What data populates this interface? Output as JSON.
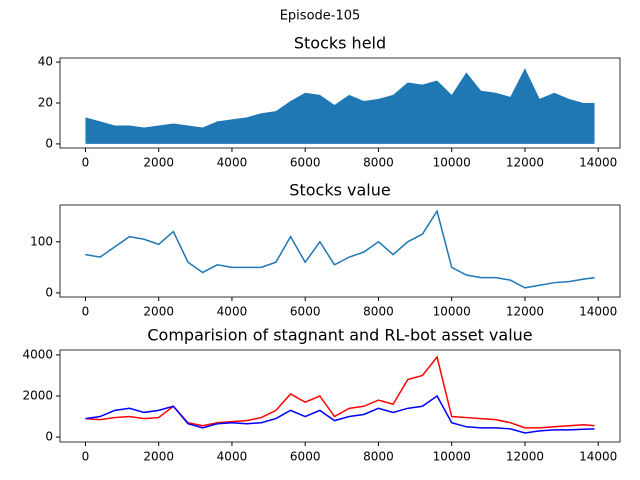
{
  "title": "Episode-105",
  "chart_data": [
    {
      "type": "area",
      "title": "Stocks held",
      "x": [
        0,
        400,
        800,
        1200,
        1600,
        2000,
        2400,
        2800,
        3200,
        3600,
        4000,
        4400,
        4800,
        5200,
        5600,
        6000,
        6400,
        6800,
        7200,
        7600,
        8000,
        8400,
        8800,
        9200,
        9600,
        10000,
        10400,
        10800,
        11200,
        11600,
        12000,
        12400,
        12800,
        13200,
        13600,
        13900
      ],
      "values": [
        13,
        11,
        9,
        9,
        8,
        9,
        10,
        9,
        8,
        11,
        12,
        13,
        15,
        16,
        21,
        25,
        24,
        19,
        24,
        21,
        22,
        24,
        30,
        29,
        31,
        24,
        35,
        26,
        25,
        23,
        37,
        22,
        25,
        22,
        20,
        20
      ],
      "color": "#1f77b4",
      "xlim": [
        -695,
        14595
      ],
      "xticks": [
        0,
        2000,
        4000,
        6000,
        8000,
        10000,
        12000,
        14000
      ],
      "ylim": [
        -2,
        42
      ],
      "yticks": [
        0,
        20,
        40
      ]
    },
    {
      "type": "line",
      "title": "Stocks value",
      "x": [
        0,
        400,
        800,
        1200,
        1600,
        2000,
        2400,
        2800,
        3200,
        3600,
        4000,
        4400,
        4800,
        5200,
        5600,
        6000,
        6400,
        6800,
        7200,
        7600,
        8000,
        8400,
        8800,
        9200,
        9600,
        10000,
        10400,
        10800,
        11200,
        11600,
        12000,
        12400,
        12800,
        13200,
        13600,
        13900
      ],
      "series": [
        {
          "color": "#1f77b4",
          "values": [
            75,
            70,
            90,
            110,
            105,
            95,
            120,
            60,
            40,
            55,
            50,
            50,
            50,
            60,
            110,
            60,
            100,
            55,
            70,
            80,
            100,
            75,
            100,
            115,
            160,
            50,
            35,
            30,
            30,
            25,
            10,
            15,
            20,
            22,
            27,
            30
          ]
        }
      ],
      "xlim": [
        -695,
        14595
      ],
      "xticks": [
        0,
        2000,
        4000,
        6000,
        8000,
        10000,
        12000,
        14000
      ],
      "ylim": [
        -8,
        172
      ],
      "yticks": [
        0,
        100
      ]
    },
    {
      "type": "line",
      "title": "Comparision of stagnant and RL-bot asset value",
      "x": [
        0,
        400,
        800,
        1200,
        1600,
        2000,
        2400,
        2800,
        3200,
        3600,
        4000,
        4400,
        4800,
        5200,
        5600,
        6000,
        6400,
        6800,
        7200,
        7600,
        8000,
        8400,
        8800,
        9200,
        9600,
        10000,
        10400,
        10800,
        11200,
        11600,
        12000,
        12400,
        12800,
        13200,
        13600,
        13900
      ],
      "series": [
        {
          "color": "#ff0000",
          "values": [
            900,
            850,
            950,
            1000,
            900,
            950,
            1500,
            700,
            550,
            700,
            750,
            800,
            950,
            1300,
            2100,
            1700,
            2000,
            1000,
            1400,
            1500,
            1800,
            1600,
            2800,
            3000,
            3900,
            1000,
            950,
            900,
            850,
            700,
            450,
            450,
            500,
            550,
            600,
            550
          ]
        },
        {
          "color": "#0000ff",
          "values": [
            900,
            1000,
            1300,
            1400,
            1200,
            1300,
            1500,
            650,
            450,
            650,
            700,
            650,
            700,
            900,
            1300,
            1000,
            1300,
            800,
            1000,
            1100,
            1400,
            1200,
            1400,
            1500,
            2000,
            700,
            500,
            450,
            450,
            400,
            200,
            300,
            350,
            350,
            380,
            400
          ]
        }
      ],
      "xlim": [
        -695,
        14595
      ],
      "xticks": [
        0,
        2000,
        4000,
        6000,
        8000,
        10000,
        12000,
        14000
      ],
      "ylim": [
        -240,
        4240
      ],
      "yticks": [
        0,
        2000,
        4000
      ]
    }
  ]
}
